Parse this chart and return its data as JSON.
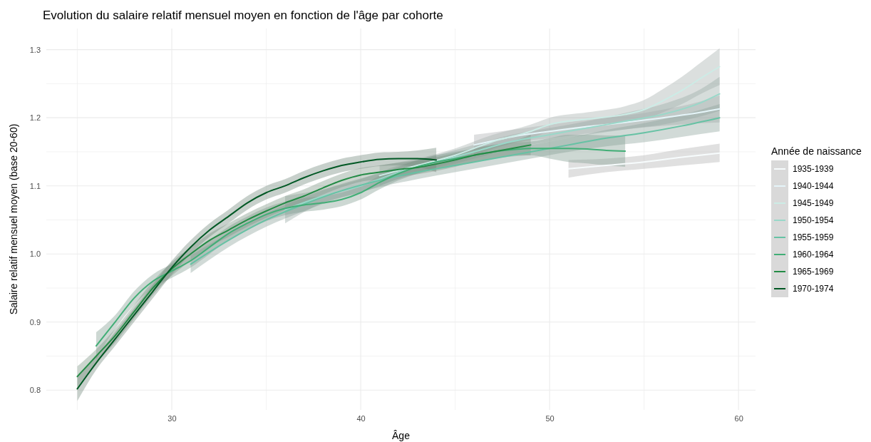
{
  "chart_data": {
    "type": "line",
    "title": "Evolution du salaire relatif mensuel moyen en fonction de l'âge par cohorte",
    "xlabel": "Âge",
    "ylabel": "Salaire relatif mensuel  moyen (base 20-60)",
    "legend_title": "Année de naissance",
    "legend": "right",
    "grid": true,
    "marker": "none",
    "line_style": "solid",
    "xlim": [
      23.36,
      60.9
    ],
    "xticks": [
      {
        "value": 25,
        "label": null
      },
      30,
      {
        "value": 35,
        "label": null
      },
      40,
      {
        "value": 45,
        "label": null
      },
      50,
      {
        "value": 55,
        "label": null
      },
      60
    ],
    "ylim": [
      0.771,
      1.331
    ],
    "yticks": [
      0.8,
      {
        "value": 0.85,
        "label": null
      },
      0.9,
      {
        "value": 0.95,
        "label": null
      },
      {
        "value": 1.0,
        "label": "1.0"
      },
      {
        "value": 1.05,
        "label": null
      },
      1.1,
      {
        "value": 1.15,
        "label": null
      },
      1.2,
      {
        "value": 1.25,
        "label": null
      },
      1.3
    ],
    "series": [
      {
        "name": "1935-1939",
        "color": "#f7fcfd",
        "x": [
          51,
          53,
          55,
          57,
          59
        ],
        "values": [
          1.125,
          1.13,
          1.135,
          1.142,
          1.148
        ],
        "lower": [
          1.112,
          1.12,
          1.125,
          1.13,
          1.135
        ],
        "upper": [
          1.138,
          1.14,
          1.145,
          1.154,
          1.162
        ]
      },
      {
        "name": "1940-1944",
        "color": "#e5f5f9",
        "x": [
          46,
          48,
          50,
          52,
          54,
          56,
          58,
          59
        ],
        "values": [
          1.16,
          1.172,
          1.18,
          1.187,
          1.193,
          1.2,
          1.208,
          1.213
        ],
        "lower": [
          1.145,
          1.162,
          1.17,
          1.177,
          1.183,
          1.188,
          1.192,
          1.193
        ],
        "upper": [
          1.175,
          1.182,
          1.19,
          1.197,
          1.203,
          1.212,
          1.224,
          1.233
        ]
      },
      {
        "name": "1945-1949",
        "color": "#ccece6",
        "x": [
          41,
          43,
          45,
          47,
          49,
          50,
          52,
          54,
          55,
          56,
          57,
          58,
          59
        ],
        "values": [
          1.115,
          1.13,
          1.145,
          1.165,
          1.18,
          1.19,
          1.198,
          1.205,
          1.212,
          1.225,
          1.24,
          1.258,
          1.275
        ],
        "lower": [
          1.1,
          1.12,
          1.135,
          1.155,
          1.17,
          1.18,
          1.188,
          1.193,
          1.198,
          1.208,
          1.22,
          1.235,
          1.248
        ],
        "upper": [
          1.13,
          1.14,
          1.155,
          1.175,
          1.19,
          1.2,
          1.208,
          1.217,
          1.226,
          1.242,
          1.26,
          1.281,
          1.302
        ]
      },
      {
        "name": "1950-1954",
        "color": "#99d8c9",
        "x": [
          36,
          38,
          40,
          42,
          44,
          46,
          48,
          50,
          52,
          54,
          56,
          58,
          59
        ],
        "values": [
          1.065,
          1.085,
          1.1,
          1.12,
          1.135,
          1.15,
          1.165,
          1.175,
          1.185,
          1.195,
          1.205,
          1.222,
          1.235
        ],
        "lower": [
          1.045,
          1.075,
          1.09,
          1.11,
          1.125,
          1.14,
          1.155,
          1.165,
          1.175,
          1.183,
          1.19,
          1.202,
          1.21
        ],
        "upper": [
          1.085,
          1.095,
          1.11,
          1.13,
          1.145,
          1.16,
          1.175,
          1.185,
          1.195,
          1.207,
          1.22,
          1.242,
          1.26
        ]
      },
      {
        "name": "1955-1959",
        "color": "#66c2a4",
        "x": [
          31,
          33,
          35,
          37,
          39,
          41,
          43,
          45,
          47,
          49,
          51,
          53,
          55,
          57,
          59
        ],
        "values": [
          0.985,
          1.02,
          1.05,
          1.073,
          1.093,
          1.108,
          1.12,
          1.13,
          1.14,
          1.15,
          1.16,
          1.17,
          1.178,
          1.188,
          1.2
        ],
        "lower": [
          0.972,
          1.01,
          1.04,
          1.063,
          1.083,
          1.098,
          1.11,
          1.12,
          1.13,
          1.14,
          1.15,
          1.158,
          1.164,
          1.172,
          1.18
        ],
        "upper": [
          0.998,
          1.03,
          1.06,
          1.083,
          1.103,
          1.118,
          1.13,
          1.14,
          1.15,
          1.16,
          1.17,
          1.182,
          1.192,
          1.204,
          1.22
        ]
      },
      {
        "name": "1960-1964",
        "color": "#41ae76",
        "x": [
          26,
          27,
          28,
          29,
          30,
          31,
          32,
          33,
          34,
          35,
          36,
          37,
          38,
          39,
          40,
          41,
          42,
          43,
          44,
          45,
          46,
          47,
          48,
          49,
          50,
          51,
          52,
          53,
          54
        ],
        "values": [
          0.865,
          0.9,
          0.935,
          0.96,
          0.975,
          0.99,
          1.01,
          1.03,
          1.045,
          1.058,
          1.067,
          1.072,
          1.075,
          1.08,
          1.09,
          1.105,
          1.118,
          1.128,
          1.135,
          1.14,
          1.145,
          1.15,
          1.153,
          1.155,
          1.155,
          1.155,
          1.154,
          1.152,
          1.151
        ],
        "lower": [
          0.845,
          0.89,
          0.925,
          0.95,
          0.965,
          0.98,
          1.0,
          1.02,
          1.035,
          1.048,
          1.057,
          1.062,
          1.065,
          1.07,
          1.08,
          1.095,
          1.108,
          1.118,
          1.125,
          1.13,
          1.135,
          1.14,
          1.143,
          1.145,
          1.14,
          1.135,
          1.133,
          1.13,
          1.128
        ],
        "upper": [
          0.885,
          0.91,
          0.945,
          0.97,
          0.985,
          1.0,
          1.02,
          1.04,
          1.055,
          1.068,
          1.077,
          1.082,
          1.085,
          1.09,
          1.1,
          1.115,
          1.128,
          1.138,
          1.145,
          1.15,
          1.155,
          1.16,
          1.163,
          1.165,
          1.17,
          1.175,
          1.175,
          1.174,
          1.174
        ]
      },
      {
        "name": "1965-1969",
        "color": "#238b45",
        "x": [
          25,
          26,
          27,
          28,
          29,
          30,
          31,
          32,
          33,
          34,
          35,
          36,
          37,
          38,
          39,
          40,
          41,
          42,
          43,
          44,
          45,
          46,
          47,
          48,
          49
        ],
        "values": [
          0.82,
          0.85,
          0.88,
          0.915,
          0.95,
          0.978,
          1.0,
          1.02,
          1.035,
          1.05,
          1.063,
          1.075,
          1.085,
          1.097,
          1.108,
          1.116,
          1.12,
          1.124,
          1.127,
          1.132,
          1.138,
          1.145,
          1.15,
          1.155,
          1.16
        ],
        "lower": [
          0.805,
          0.84,
          0.87,
          0.905,
          0.94,
          0.968,
          0.99,
          1.01,
          1.025,
          1.04,
          1.053,
          1.065,
          1.075,
          1.087,
          1.098,
          1.106,
          1.11,
          1.114,
          1.117,
          1.122,
          1.128,
          1.135,
          1.14,
          1.145,
          1.145
        ],
        "upper": [
          0.835,
          0.86,
          0.89,
          0.925,
          0.96,
          0.988,
          1.01,
          1.03,
          1.045,
          1.06,
          1.073,
          1.085,
          1.095,
          1.107,
          1.118,
          1.126,
          1.13,
          1.134,
          1.137,
          1.142,
          1.148,
          1.155,
          1.16,
          1.165,
          1.175
        ]
      },
      {
        "name": "1970-1974",
        "color": "#005824",
        "x": [
          25,
          26,
          27,
          28,
          29,
          30,
          31,
          32,
          33,
          34,
          35,
          36,
          37,
          38,
          39,
          40,
          41,
          42,
          43,
          44
        ],
        "values": [
          0.802,
          0.84,
          0.875,
          0.91,
          0.945,
          0.98,
          1.01,
          1.035,
          1.055,
          1.075,
          1.09,
          1.1,
          1.112,
          1.122,
          1.13,
          1.135,
          1.139,
          1.14,
          1.14,
          1.138
        ],
        "lower": [
          0.784,
          0.83,
          0.865,
          0.9,
          0.935,
          0.97,
          1.0,
          1.025,
          1.045,
          1.065,
          1.08,
          1.09,
          1.102,
          1.112,
          1.12,
          1.125,
          1.129,
          1.13,
          1.128,
          1.12
        ],
        "upper": [
          0.82,
          0.85,
          0.885,
          0.92,
          0.955,
          0.99,
          1.02,
          1.045,
          1.065,
          1.085,
          1.1,
          1.11,
          1.122,
          1.132,
          1.14,
          1.145,
          1.149,
          1.15,
          1.152,
          1.156
        ]
      }
    ]
  }
}
